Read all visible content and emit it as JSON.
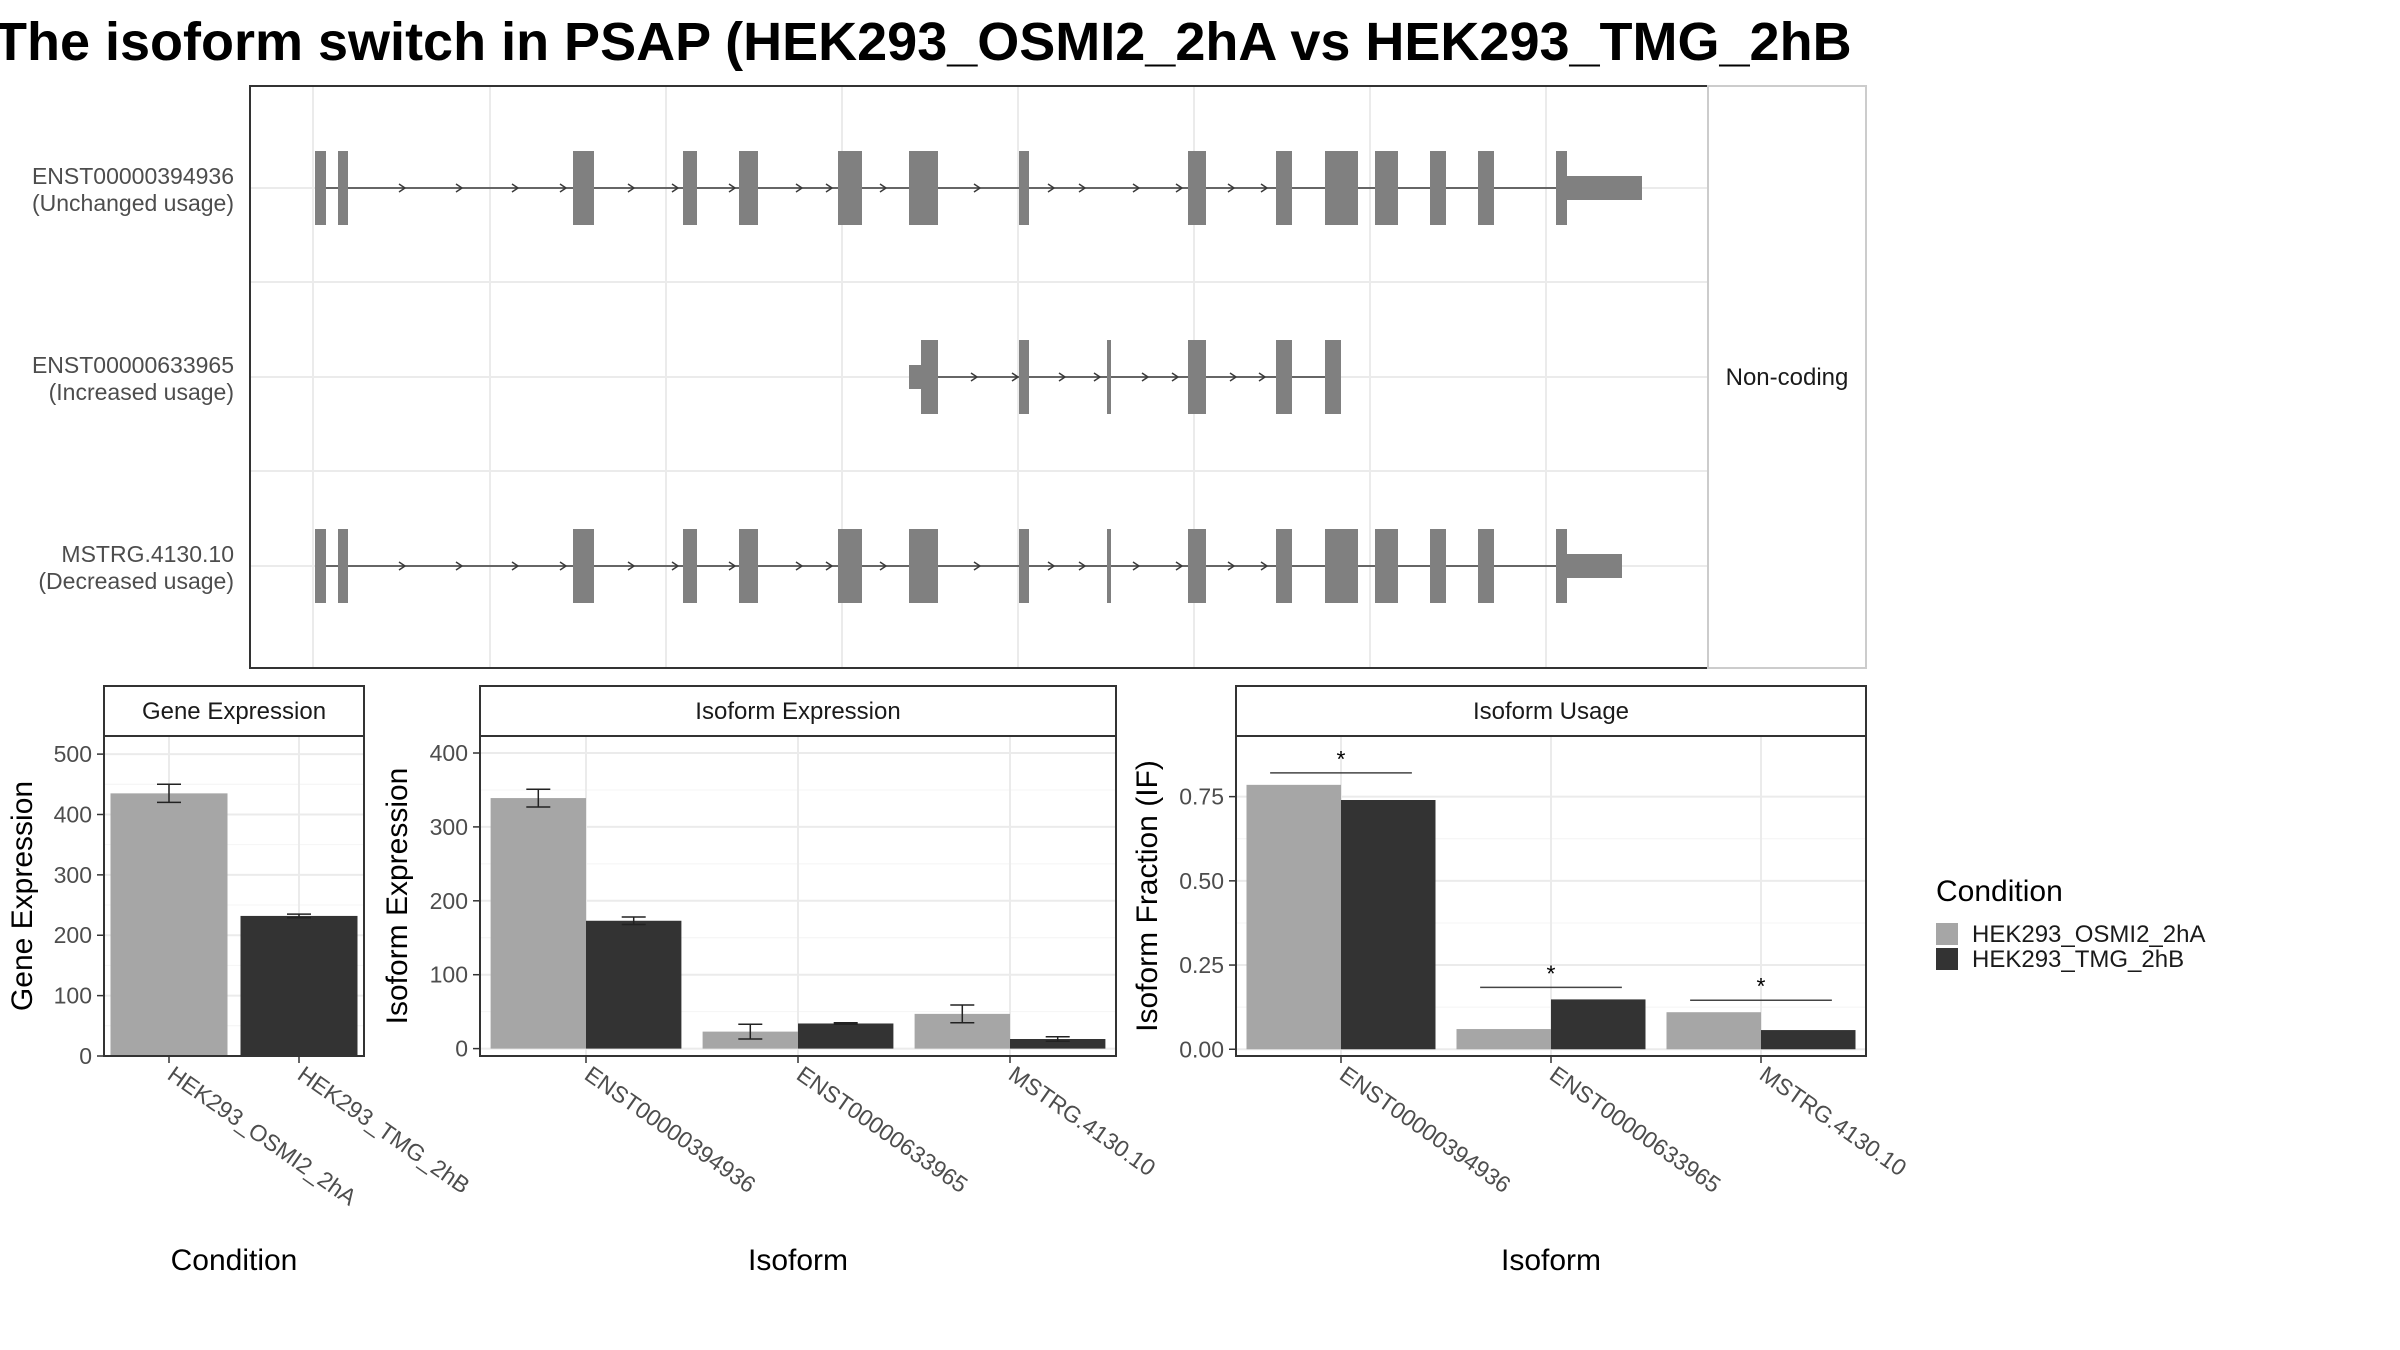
{
  "chart_data": {
    "title": "The isoform switch in PSAP (HEK293_OSMI2_2hA vs HEK293_TMG_2hB",
    "structure": {
      "type": "gene-structure",
      "side_label": "Non-coding",
      "isoforms": [
        {
          "id": "ENST00000394936",
          "usage": "(Unchanged usage)"
        },
        {
          "id": "ENST00000633965",
          "usage": "(Increased usage)"
        },
        {
          "id": "MSTRG.4130.10",
          "usage": "(Decreased usage)"
        }
      ]
    },
    "gene_expression": {
      "type": "bar",
      "strip": "Gene Expression",
      "xlabel": "Condition",
      "ylabel": "Gene Expression",
      "ylim": [
        0,
        530
      ],
      "yticks": [
        0,
        100,
        200,
        300,
        400,
        500
      ],
      "categories": [
        "HEK293_OSMI2_2hA",
        "HEK293_TMG_2hB"
      ],
      "values": [
        435,
        232
      ],
      "errors": [
        15,
        3
      ]
    },
    "isoform_expression": {
      "type": "bar",
      "strip": "Isoform Expression",
      "xlabel": "Isoform",
      "ylabel": "Isoform Expression",
      "ylim": [
        -10,
        423
      ],
      "yticks": [
        0,
        100,
        200,
        300,
        400
      ],
      "categories": [
        "ENST00000394936",
        "ENST00000633965",
        "MSTRG.4130.10"
      ],
      "series": [
        {
          "name": "HEK293_OSMI2_2hA",
          "values": [
            339,
            23,
            47
          ],
          "errors": [
            12,
            10,
            12
          ]
        },
        {
          "name": "HEK293_TMG_2hB",
          "values": [
            173,
            34,
            13
          ],
          "errors": [
            5,
            1,
            3
          ]
        }
      ]
    },
    "isoform_usage": {
      "type": "bar",
      "strip": "Isoform Usage",
      "xlabel": "Isoform",
      "ylabel": "Isoform Fraction (IF)",
      "ylim": [
        -0.02,
        0.93
      ],
      "yticks": [
        "0.00",
        "0.25",
        "0.50",
        "0.75"
      ],
      "categories": [
        "ENST00000394936",
        "ENST00000633965",
        "MSTRG.4130.10"
      ],
      "series": [
        {
          "name": "HEK293_OSMI2_2hA",
          "values": [
            0.785,
            0.06,
            0.11
          ]
        },
        {
          "name": "HEK293_TMG_2hB",
          "values": [
            0.74,
            0.148,
            0.057
          ]
        }
      ],
      "significance": [
        "*",
        "*",
        "*"
      ]
    },
    "legend": {
      "title": "Condition",
      "placement": "right",
      "entries": [
        "HEK293_OSMI2_2hA",
        "HEK293_TMG_2hB"
      ]
    },
    "colors": {
      "condition_a": "#a6a6a6",
      "condition_b": "#333333",
      "exon": "#808080",
      "grid": "#ebebeb",
      "strip_fill": "#ffffff",
      "panel_border": "#333333"
    }
  }
}
